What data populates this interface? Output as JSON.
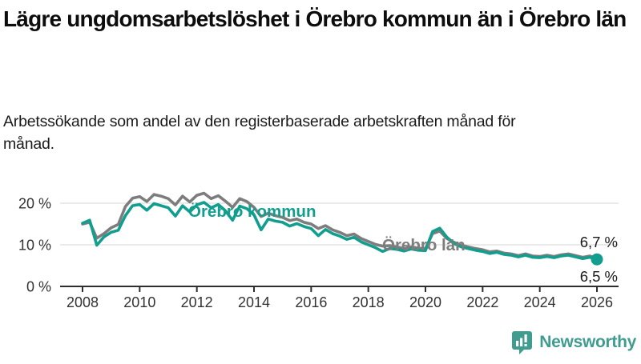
{
  "header": {
    "title": "Lägre ungdomsarbetslöshet i Örebro kommun än i Örebro län",
    "subtitle": "Arbetssökande som andel av den registerbaserade arbetskraften månad för månad."
  },
  "branding": {
    "logo_text": "Newsworthy",
    "logo_icon": "bar-chart-speech-bubble-icon",
    "logo_color": "#3f9c8e"
  },
  "colors": {
    "kommun_line": "#129e8e",
    "lan_line": "#7d7d7d",
    "grid": "#e3e3e3",
    "axis": "#2e2e2e",
    "tick_text": "#333333",
    "annotation_text": "#1a1a1a"
  },
  "chart_data": {
    "type": "line",
    "title": "Lägre ungdomsarbetslöshet i Örebro kommun än i Örebro län",
    "xlabel": "",
    "ylabel": "Arbetssökande som andel av den registerbaserade arbetskraften",
    "xlim": [
      2007.2,
      2026.7
    ],
    "ylim": [
      0,
      24
    ],
    "grid": "horizontal",
    "legend": "inline-labels",
    "x_ticks": [
      "2008",
      "2010",
      "2012",
      "2014",
      "2016",
      "2018",
      "2020",
      "2022",
      "2024",
      "2026"
    ],
    "x_tick_years": [
      2008,
      2010,
      2012,
      2014,
      2016,
      2018,
      2020,
      2022,
      2024,
      2026
    ],
    "y_ticks": [
      {
        "value": 0,
        "label": "0 %"
      },
      {
        "value": 10,
        "label": "10 %"
      },
      {
        "value": 20,
        "label": "20 %"
      }
    ],
    "x": [
      2008,
      2008.25,
      2008.5,
      2008.75,
      2009,
      2009.25,
      2009.5,
      2009.75,
      2010,
      2010.25,
      2010.5,
      2010.75,
      2011,
      2011.25,
      2011.5,
      2011.75,
      2012,
      2012.25,
      2012.5,
      2012.75,
      2013,
      2013.25,
      2013.5,
      2013.75,
      2014,
      2014.25,
      2014.5,
      2014.75,
      2015,
      2015.25,
      2015.5,
      2015.75,
      2016,
      2016.25,
      2016.5,
      2016.75,
      2017,
      2017.25,
      2017.5,
      2017.75,
      2018,
      2018.25,
      2018.5,
      2018.75,
      2019,
      2019.25,
      2019.5,
      2019.75,
      2020,
      2020.25,
      2020.5,
      2020.75,
      2021,
      2021.25,
      2021.5,
      2021.75,
      2022,
      2022.25,
      2022.5,
      2022.75,
      2023,
      2023.25,
      2023.5,
      2023.75,
      2024,
      2024.25,
      2024.5,
      2024.75,
      2025,
      2025.25,
      2025.5,
      2025.75,
      2026
    ],
    "series": [
      {
        "name": "Örebro kommun",
        "color": "#129e8e",
        "end_value": 6.5,
        "end_label": "6,5 %",
        "values": [
          15.2,
          15.9,
          9.9,
          11.9,
          13.0,
          13.5,
          17.0,
          19.4,
          19.7,
          18.3,
          19.9,
          19.4,
          18.9,
          16.9,
          19.4,
          17.9,
          19.6,
          20.2,
          18.9,
          19.7,
          18.2,
          15.9,
          19.3,
          18.7,
          17.2,
          13.6,
          16.2,
          15.7,
          15.4,
          14.5,
          15.1,
          14.4,
          13.9,
          12.2,
          13.7,
          12.7,
          12.1,
          11.3,
          11.8,
          10.7,
          10.0,
          9.3,
          8.4,
          9.1,
          8.9,
          8.5,
          9.0,
          8.7,
          8.6,
          13.2,
          14.0,
          11.8,
          10.3,
          9.5,
          9.1,
          8.7,
          8.4,
          7.9,
          8.2,
          7.7,
          7.5,
          7.1,
          7.5,
          7.0,
          6.9,
          7.2,
          6.9,
          7.3,
          7.5,
          7.1,
          6.7,
          7.0,
          6.5
        ]
      },
      {
        "name": "Örebro län",
        "color": "#7d7d7d",
        "end_value": 6.7,
        "end_label": "6,7 %",
        "values": [
          15.0,
          15.4,
          11.6,
          12.7,
          14.1,
          14.9,
          19.2,
          21.2,
          21.6,
          20.4,
          22.1,
          21.7,
          21.1,
          19.6,
          21.7,
          20.3,
          21.9,
          22.4,
          21.1,
          21.8,
          20.5,
          19.0,
          21.1,
          20.4,
          19.0,
          16.8,
          17.6,
          17.0,
          16.6,
          15.8,
          16.2,
          15.4,
          15.0,
          13.9,
          14.6,
          13.6,
          13.0,
          12.2,
          12.6,
          11.5,
          10.8,
          10.1,
          9.7,
          9.8,
          9.5,
          9.1,
          9.5,
          9.2,
          9.1,
          12.7,
          13.3,
          11.5,
          10.6,
          9.9,
          9.5,
          9.1,
          8.8,
          8.3,
          8.5,
          8.0,
          7.8,
          7.4,
          7.8,
          7.3,
          7.2,
          7.5,
          7.2,
          7.6,
          7.8,
          7.4,
          7.0,
          7.3,
          6.7
        ]
      }
    ]
  }
}
